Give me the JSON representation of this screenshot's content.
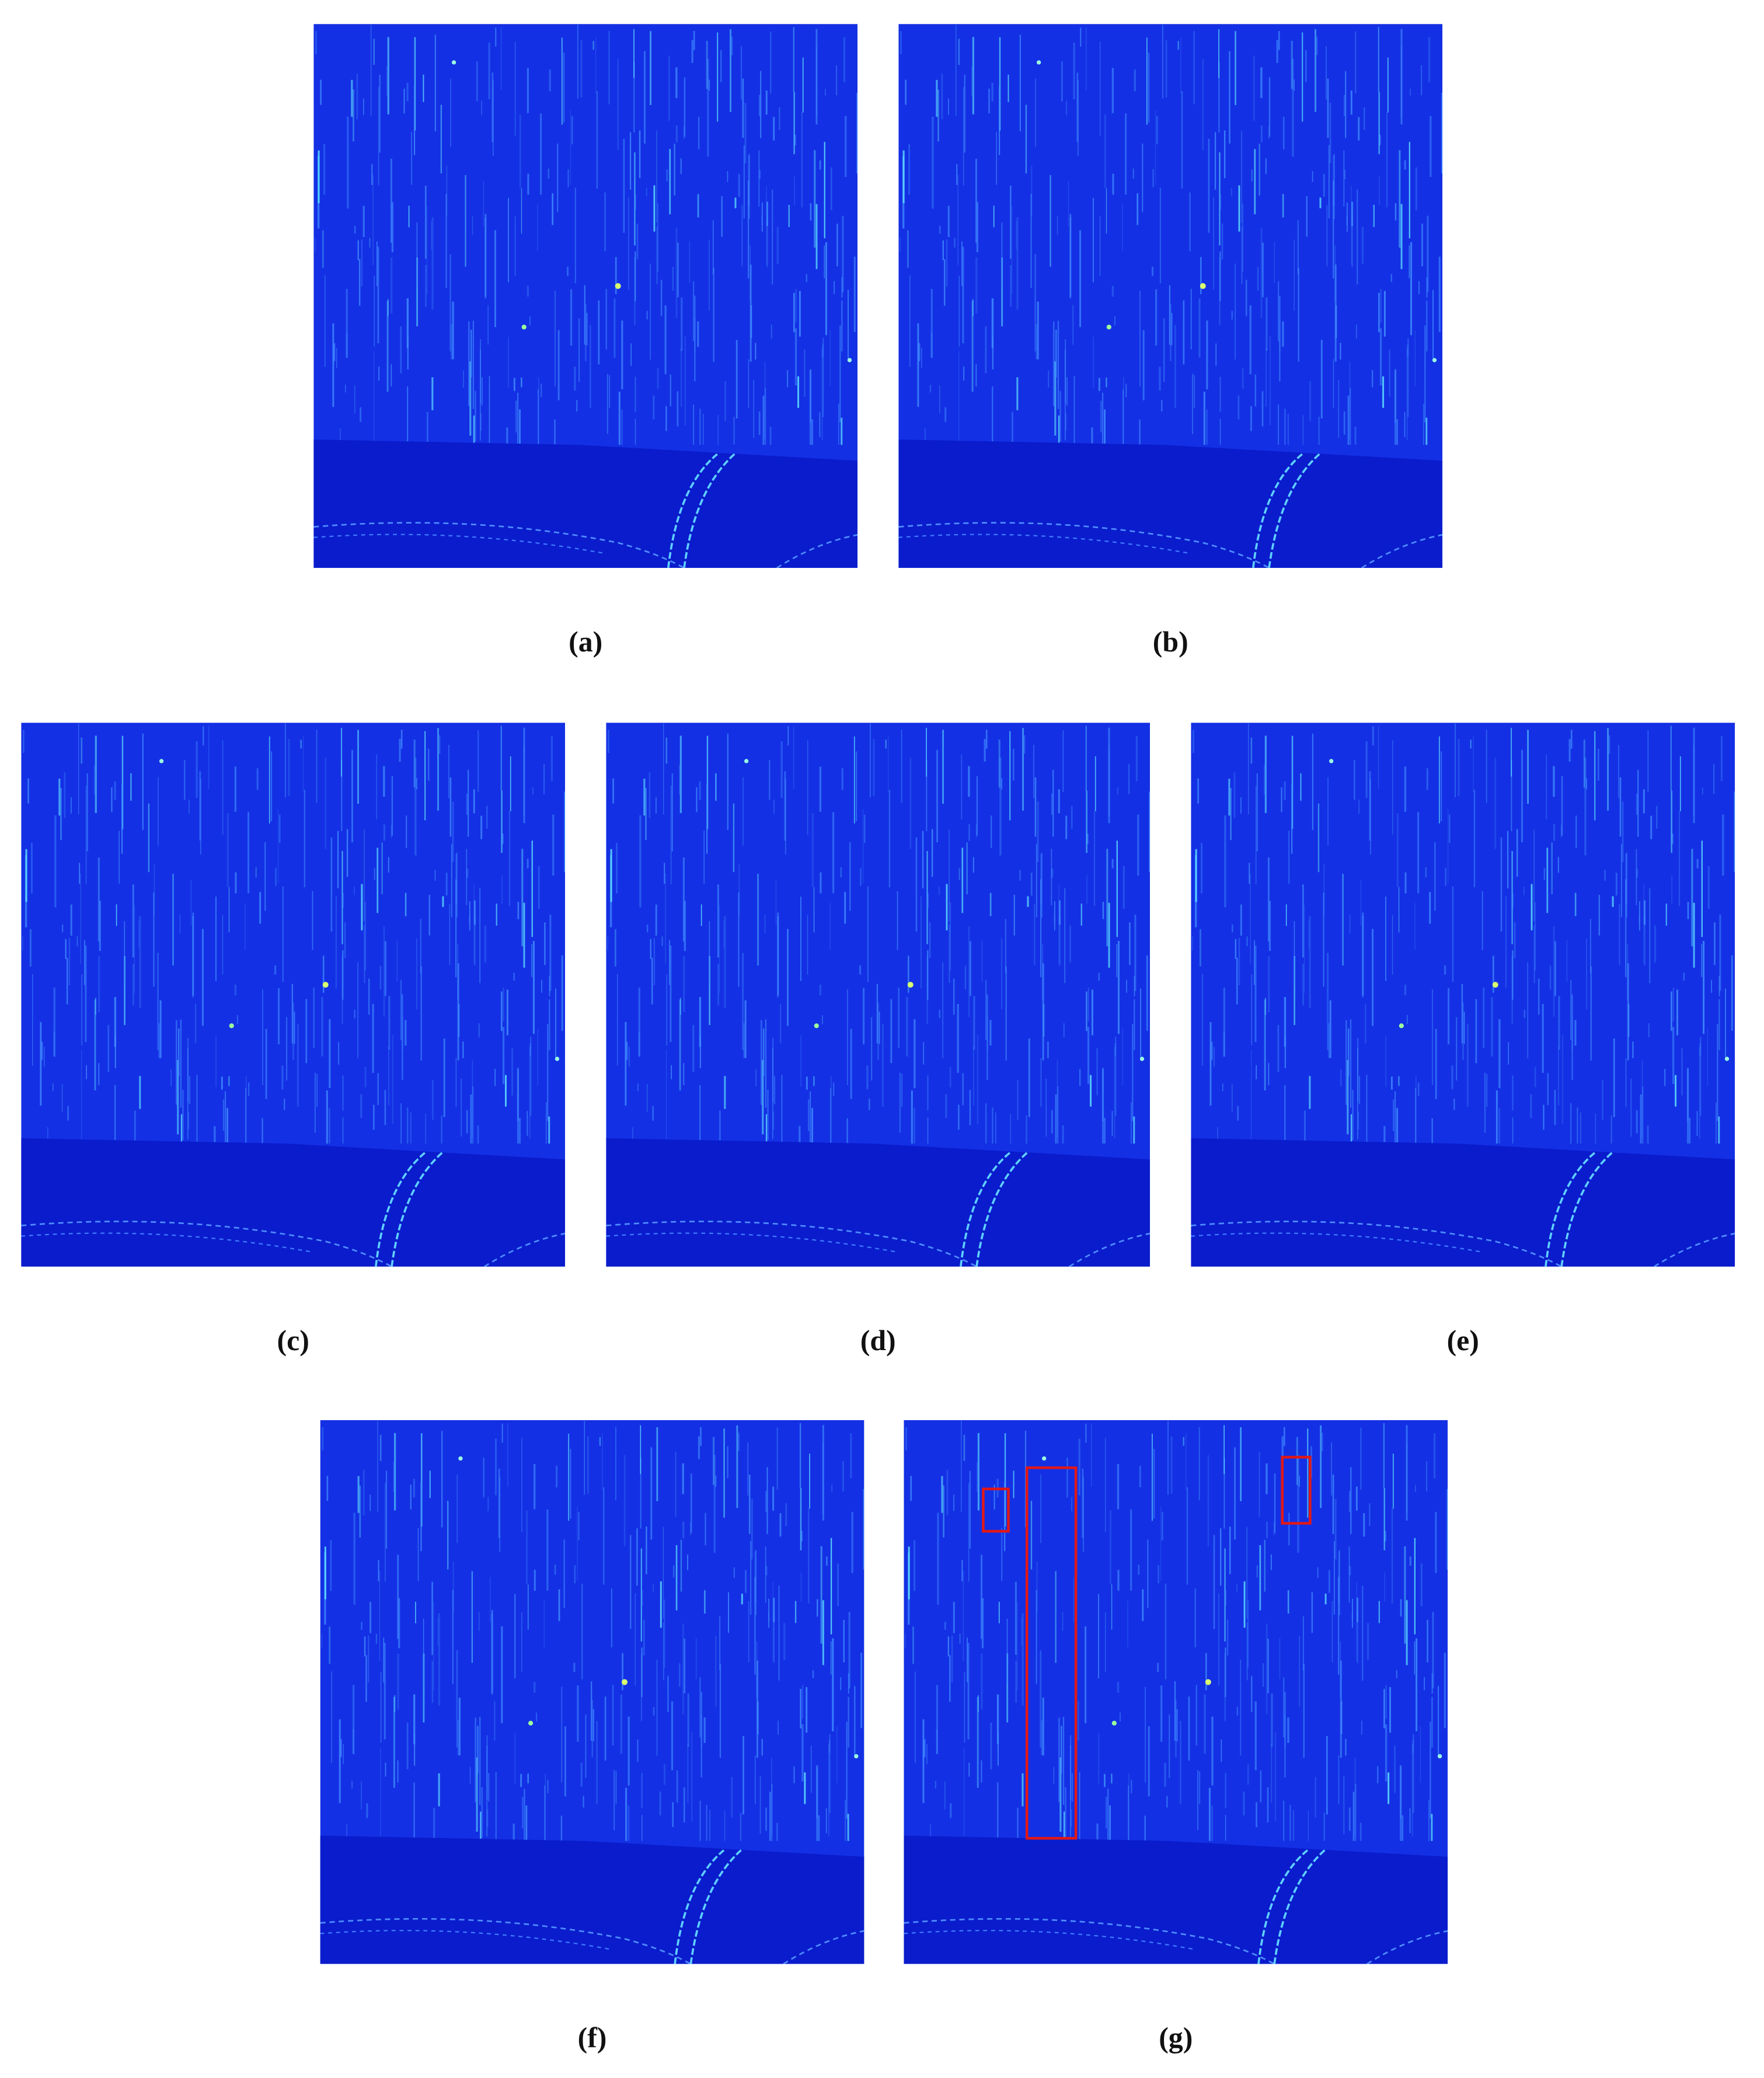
{
  "figure": {
    "panels": [
      {
        "caption": "(a)"
      },
      {
        "caption": "(b)"
      },
      {
        "caption": "(c)"
      },
      {
        "caption": "(d)"
      },
      {
        "caption": "(e)"
      },
      {
        "caption": "(f)"
      },
      {
        "caption": "(g)"
      }
    ]
  }
}
